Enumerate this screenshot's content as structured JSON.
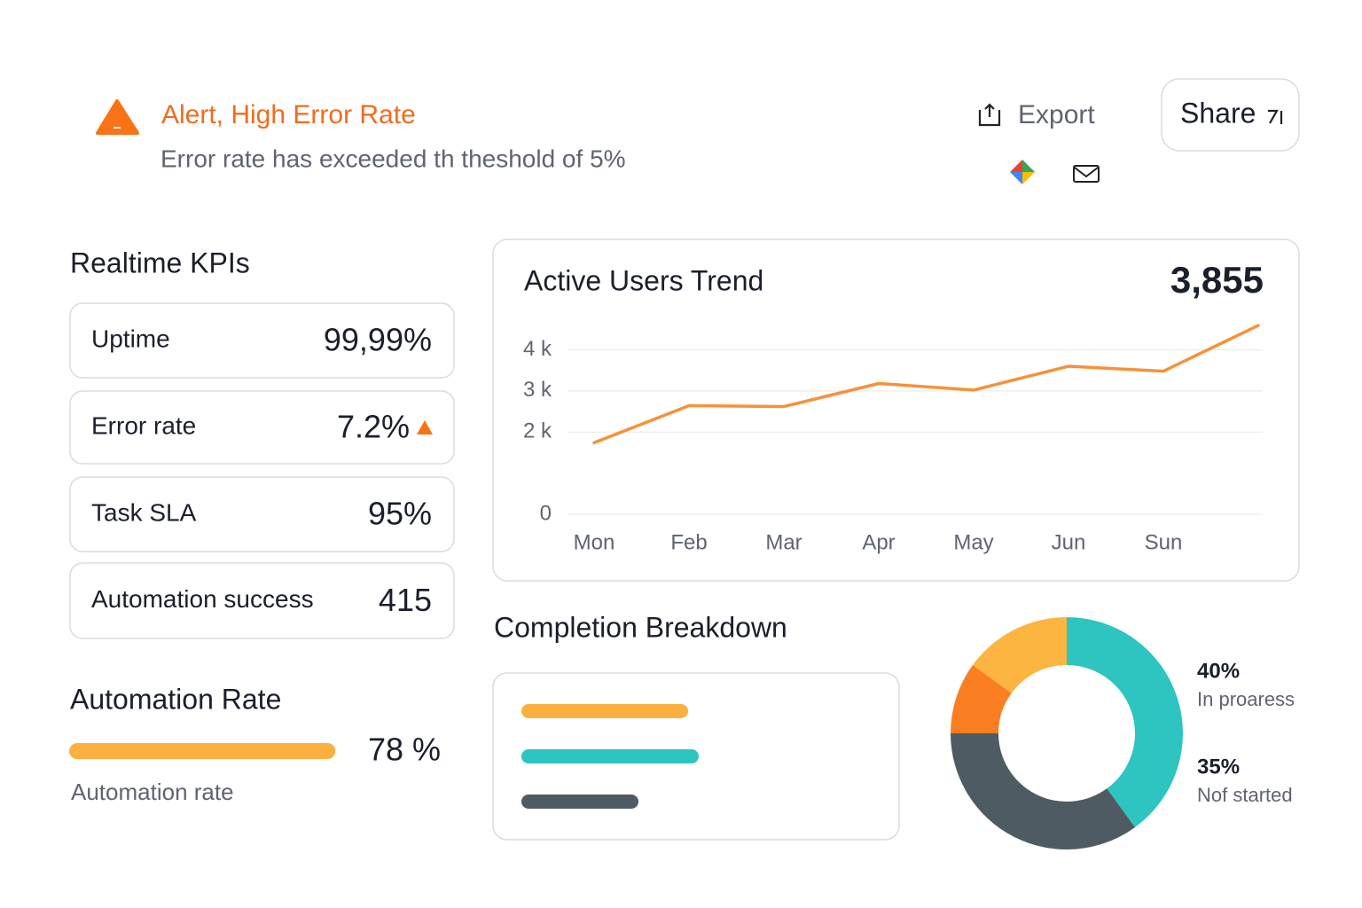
{
  "alert": {
    "title": "Alert, High Error Rate",
    "message": "Error rate has exceeded th theshold of 5%"
  },
  "actions": {
    "export": "Export",
    "share": "Share"
  },
  "kpis": {
    "title": "Realtime KPIs",
    "items": [
      {
        "label": "Uptime",
        "value": "99,99%"
      },
      {
        "label": "Error rate",
        "value": "7.2%"
      },
      {
        "label": "Task SLA",
        "value": "95%"
      },
      {
        "label": "Automation success",
        "value": "415"
      }
    ]
  },
  "automation_rate": {
    "title": "Automation Rate",
    "value": 78,
    "value_label": "78 %",
    "caption": "Automation rate",
    "xlim": [
      0,
      100
    ],
    "color": "#fbb040"
  },
  "chart_data": [
    {
      "type": "line",
      "title": "Active Users Trend",
      "headline": "3,855",
      "categories": [
        "Mon",
        "Feb",
        "Mar",
        "Apr",
        "May",
        "Jun",
        "Sun",
        null
      ],
      "values": [
        1740,
        2640,
        2620,
        3180,
        3020,
        3600,
        3480,
        4590
      ],
      "color": "#f5923a",
      "ylim": [
        0,
        4700
      ],
      "yticks": [
        {
          "value": 0,
          "label": "0"
        },
        {
          "value": 2000,
          "label": "2 k"
        },
        {
          "value": 3000,
          "label": "3 k"
        },
        {
          "value": 4000,
          "label": "4 k"
        }
      ],
      "grid": true
    },
    {
      "type": "bar",
      "orientation": "horizontal",
      "title": "Completion Breakdown",
      "values": [
        47,
        50,
        33
      ],
      "colors": [
        "#fbb040",
        "#2ec4c0",
        "#4f5b62"
      ],
      "xlim": [
        0,
        100
      ]
    },
    {
      "type": "pie",
      "donut": true,
      "categories": [
        "In proaress",
        "Nof started",
        null,
        null
      ],
      "values": [
        40,
        35,
        10,
        15
      ],
      "value_labels": [
        "40%",
        "35%",
        null,
        null
      ],
      "colors": [
        "#2ec4c0",
        "#4f5b62",
        "#f97f22",
        "#fbb540"
      ]
    }
  ]
}
